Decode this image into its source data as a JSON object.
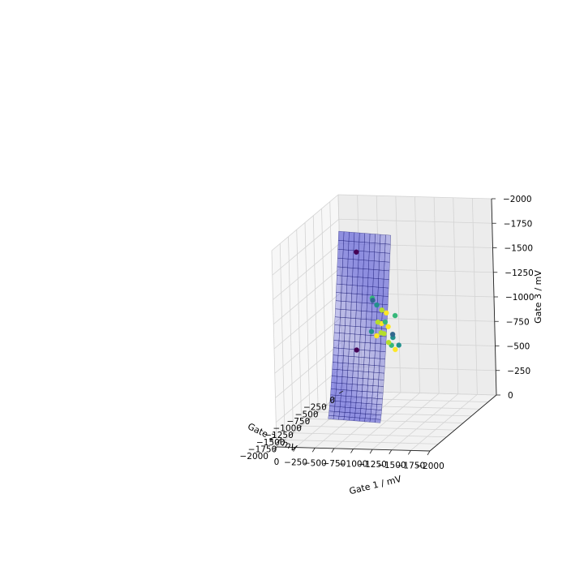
{
  "chart_data": {
    "type": "scatter",
    "subtype": "3d-surface-with-scatter",
    "xlabel": "Gate 1 / mV",
    "ylabel": "Gate 2 / mV",
    "zlabel": "Gate 3 / mV",
    "xlim": [
      0,
      -2000
    ],
    "ylim": [
      0,
      -2000
    ],
    "zlim": [
      0,
      -2000
    ],
    "x_ticks": [
      0,
      -250,
      -500,
      -750,
      -1000,
      -1250,
      -1500,
      -1750,
      -2000
    ],
    "y_ticks": [
      0,
      -250,
      -500,
      -750,
      -1000,
      -1250,
      -1500,
      -1750,
      -2000
    ],
    "z_ticks": [
      0,
      -250,
      -500,
      -750,
      -1000,
      -1250,
      -1500,
      -1750,
      -2000
    ],
    "x_tick_labels": [
      "0",
      "−250",
      "−500",
      "−750",
      "−1000",
      "−1250",
      "−1500",
      "−1750",
      "−2000"
    ],
    "y_tick_labels": [
      "0",
      "−250",
      "−500",
      "−750",
      "−1000",
      "−1250",
      "−1500",
      "−1750",
      "−2000"
    ],
    "z_tick_labels": [
      "0",
      "−250",
      "−500",
      "−750",
      "−1000",
      "−1250",
      "−1500",
      "−1750",
      "−2000"
    ],
    "grid": true,
    "surface_color": "#5a5ad8",
    "surface_edge_color": "#0a0a66",
    "points": [
      {
        "x": -820,
        "y": -1360,
        "z": -1820,
        "c": "#440154"
      },
      {
        "x": -700,
        "y": -1150,
        "z": -760,
        "c": "#440154"
      },
      {
        "x": -720,
        "y": -700,
        "z": -1160,
        "c": "#35b779"
      },
      {
        "x": -700,
        "y": -640,
        "z": -1120,
        "c": "#31688e"
      },
      {
        "x": -760,
        "y": -660,
        "z": -1080,
        "c": "#21918c"
      },
      {
        "x": -780,
        "y": -560,
        "z": -1000,
        "c": "#b5de2b"
      },
      {
        "x": -820,
        "y": -520,
        "z": -960,
        "c": "#fde725"
      },
      {
        "x": -800,
        "y": -620,
        "z": -880,
        "c": "#fde725"
      },
      {
        "x": -760,
        "y": -640,
        "z": -900,
        "c": "#b5de2b"
      },
      {
        "x": -820,
        "y": -560,
        "z": -880,
        "c": "#35b779"
      },
      {
        "x": -840,
        "y": -520,
        "z": -820,
        "c": "#fde725"
      },
      {
        "x": -780,
        "y": -600,
        "z": -780,
        "c": "#b5de2b"
      },
      {
        "x": -740,
        "y": -640,
        "z": -760,
        "c": "#fde725"
      },
      {
        "x": -800,
        "y": -560,
        "z": -760,
        "c": "#b5de2b"
      },
      {
        "x": -880,
        "y": -480,
        "z": -700,
        "c": "#21918c"
      },
      {
        "x": -860,
        "y": -480,
        "z": -620,
        "c": "#35b779"
      },
      {
        "x": -880,
        "y": -420,
        "z": -560,
        "c": "#fde725"
      },
      {
        "x": -920,
        "y": -400,
        "z": -600,
        "c": "#21918c"
      },
      {
        "x": -860,
        "y": -440,
        "z": -720,
        "c": "#31688e"
      },
      {
        "x": -700,
        "y": -700,
        "z": -820,
        "c": "#21918c"
      },
      {
        "x": -880,
        "y": -400,
        "z": -900,
        "c": "#35b779"
      },
      {
        "x": -840,
        "y": -520,
        "z": -660,
        "c": "#b5de2b"
      }
    ]
  }
}
